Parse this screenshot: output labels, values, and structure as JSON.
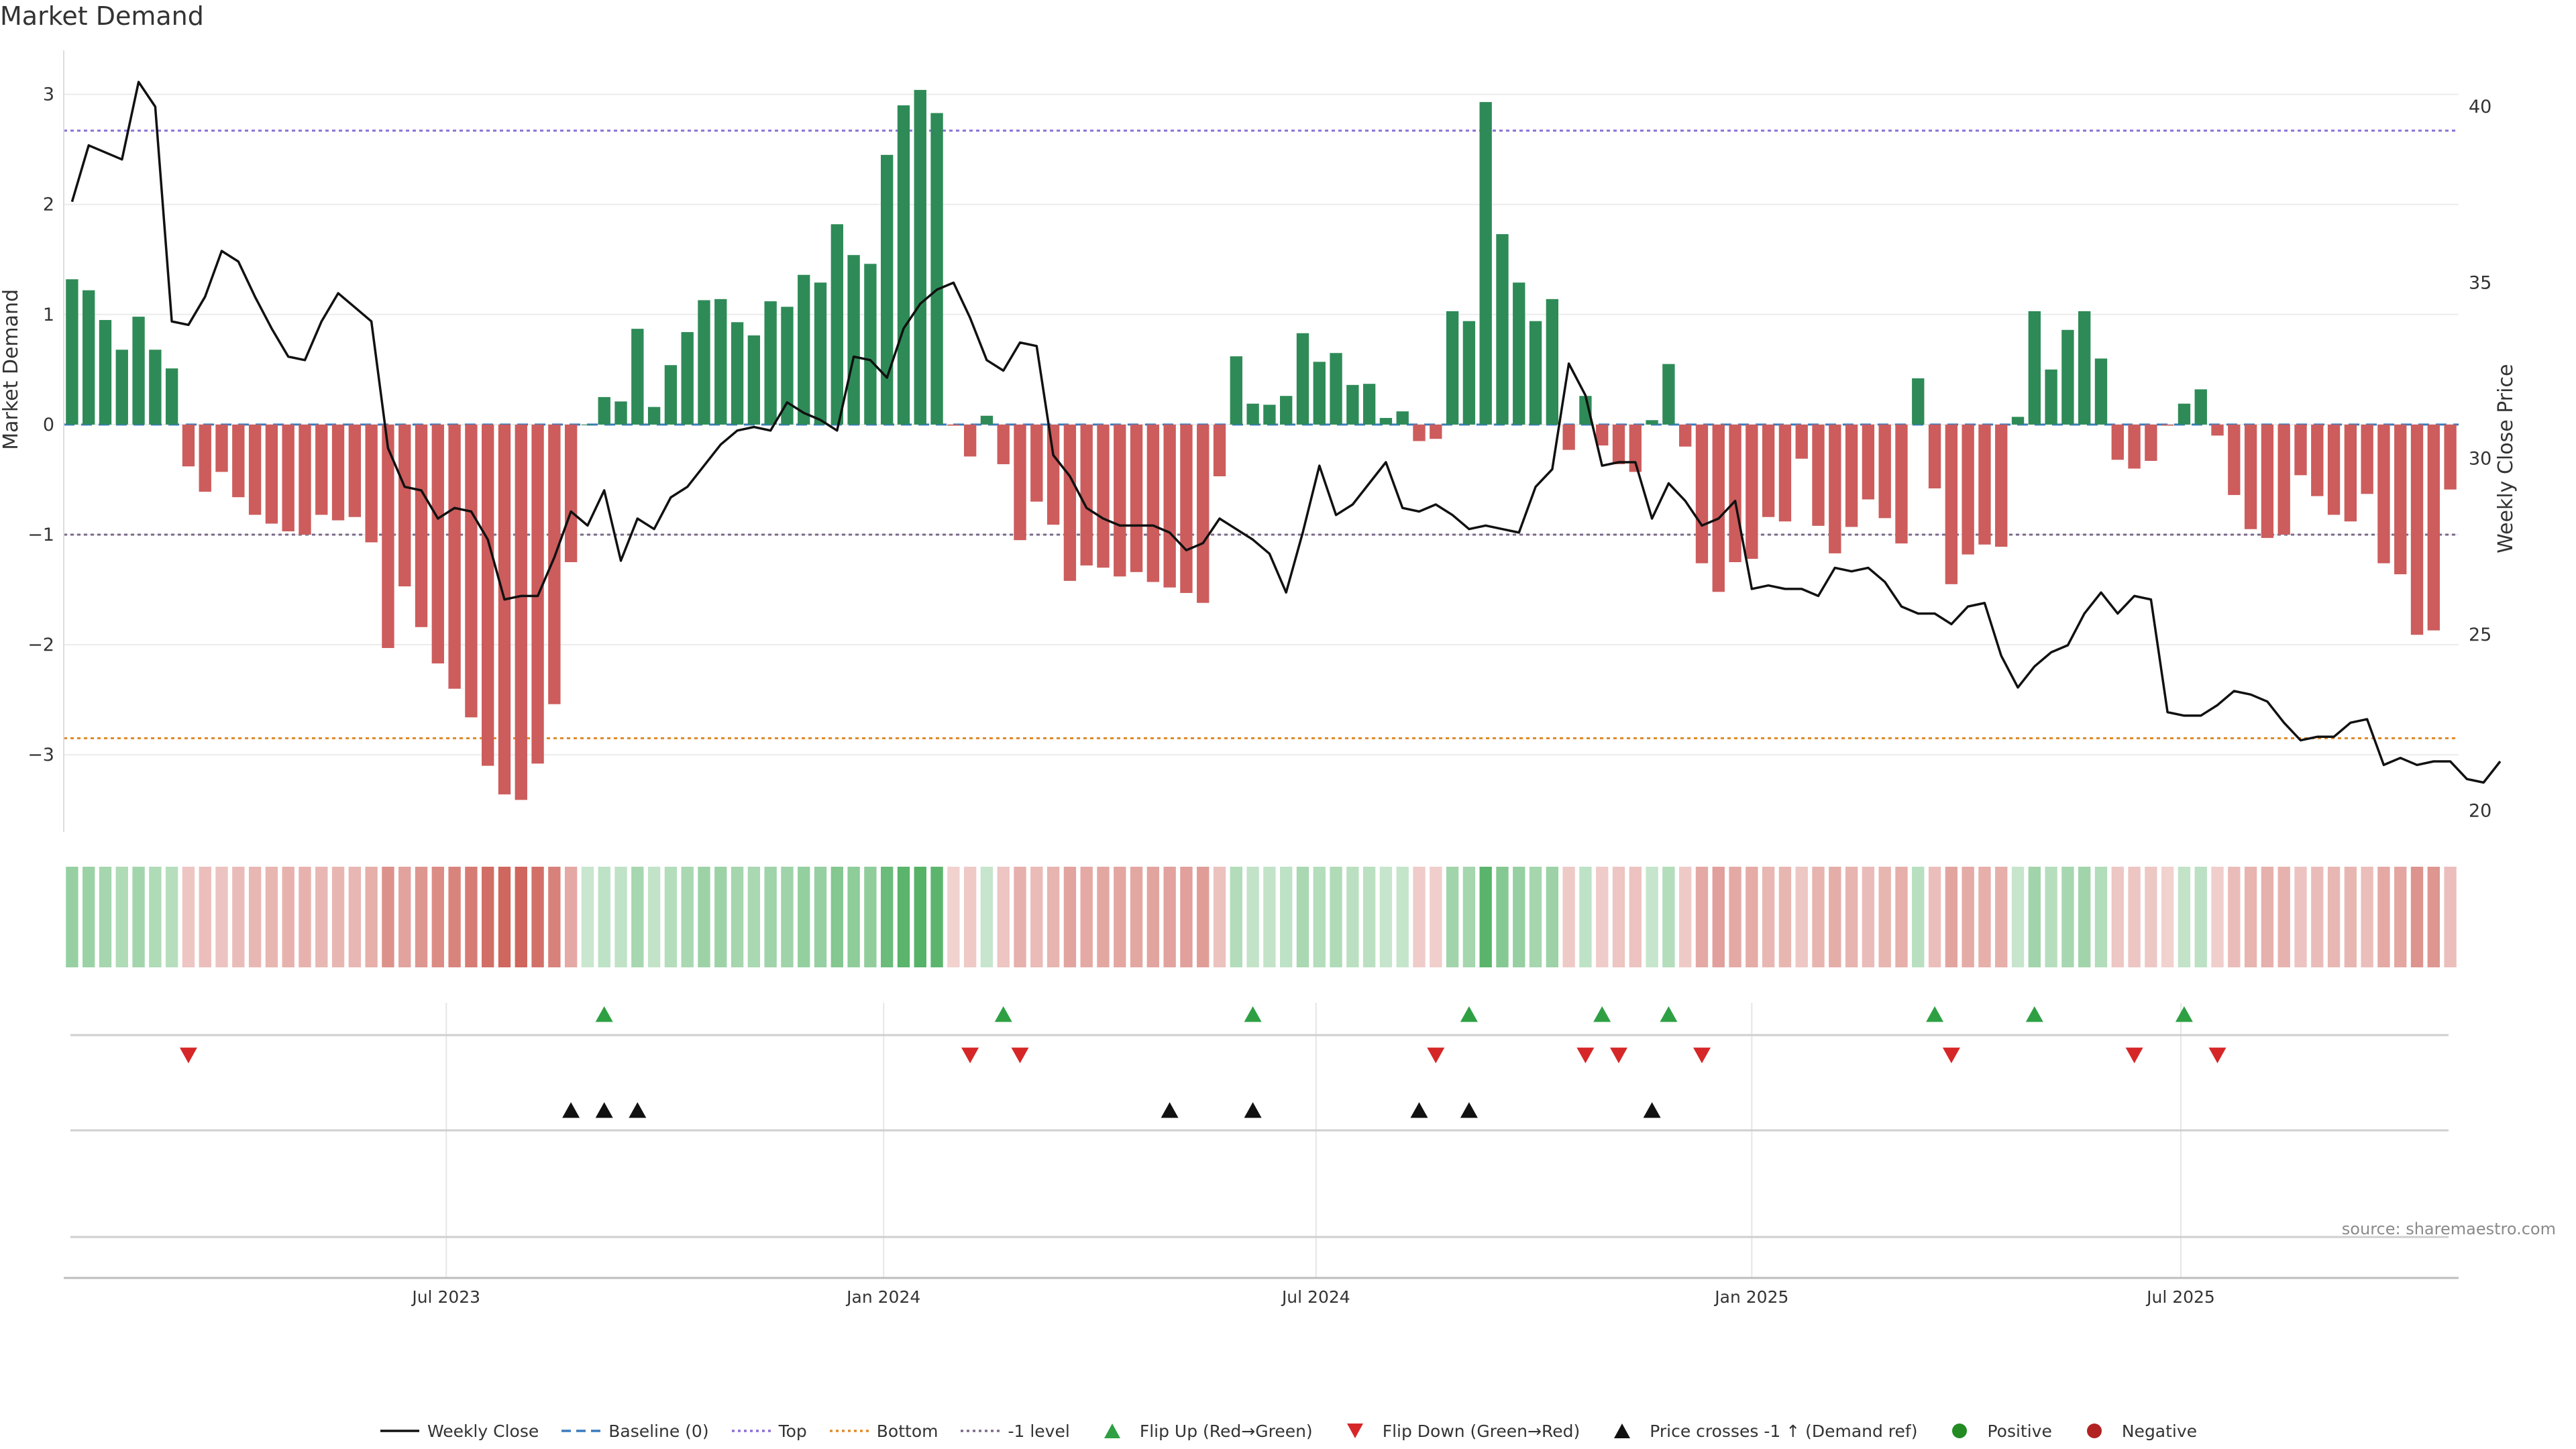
{
  "title": "Market Demand",
  "source_text": "source: sharemaestro.com",
  "colors": {
    "positive": "#2e8b57",
    "negative": "#cd5c5c",
    "close_line": "#111111",
    "top_line": "#8a6fd8",
    "bottom_line": "#e08a2a",
    "minus1_line": "#7a6a8a",
    "baseline": "#3a7bbf",
    "flip_up": "#2ea043",
    "flip_down": "#d62728",
    "crosses": "#111111"
  },
  "legend": [
    {
      "label": "Weekly Close",
      "symbol": "line-solid",
      "color": "#111111"
    },
    {
      "label": "Baseline (0)",
      "symbol": "line-dash",
      "color": "#3a7bbf"
    },
    {
      "label": "Top",
      "symbol": "line-dot",
      "color": "#8a6fd8"
    },
    {
      "label": "Bottom",
      "symbol": "line-dot",
      "color": "#e08a2a"
    },
    {
      "label": "-1 level",
      "symbol": "line-dot",
      "color": "#7a6a8a"
    },
    {
      "label": "Flip Up (Red→Green)",
      "symbol": "tri-up",
      "color": "#2ea043"
    },
    {
      "label": "Flip Down (Green→Red)",
      "symbol": "tri-down",
      "color": "#d62728"
    },
    {
      "label": "Price crosses -1 ↑ (Demand ref)",
      "symbol": "tri-up",
      "color": "#111111"
    },
    {
      "label": "Positive",
      "symbol": "dot",
      "color": "#228b22"
    },
    {
      "label": "Negative",
      "symbol": "dot",
      "color": "#b22222"
    }
  ],
  "chart_data": {
    "type": "bar",
    "title": "Market Demand",
    "ylabel": "Market Demand",
    "y2label": "Weekly Close Price",
    "ylim": [
      -3.7,
      3.4
    ],
    "y2lim": [
      19.4,
      41.6
    ],
    "yticks": [
      3,
      2,
      1,
      0,
      -1,
      -2,
      -3
    ],
    "ytick_labels": [
      "3",
      "2",
      "1",
      "0",
      "−1",
      "−2",
      "−3"
    ],
    "y2ticks": [
      40,
      35,
      30,
      25,
      20
    ],
    "x_tick_labels": [
      "Jul 2023",
      "Jan 2024",
      "Jul 2024",
      "Jan 2025",
      "Jul 2025"
    ],
    "x_tick_index": [
      22.5,
      48.8,
      74.8,
      101.0,
      126.8
    ],
    "reference_levels": {
      "baseline": 0,
      "top": 2.67,
      "bottom": -2.85,
      "minus_one": -1
    },
    "demand": [
      1.32,
      1.22,
      0.95,
      0.68,
      0.98,
      0.68,
      0.51,
      -0.38,
      -0.61,
      -0.43,
      -0.66,
      -0.82,
      -0.9,
      -0.97,
      -1,
      -0.82,
      -0.87,
      -0.84,
      -1.07,
      -2.03,
      -1.47,
      -1.84,
      -2.17,
      -2.4,
      -2.66,
      -3.1,
      -3.36,
      -3.41,
      -3.08,
      -2.54,
      -1.25,
      0,
      0.25,
      0.21,
      0.87,
      0.16,
      0.54,
      0.84,
      1.13,
      1.14,
      0.93,
      0.81,
      1.12,
      1.07,
      1.36,
      1.29,
      1.82,
      1.54,
      1.46,
      2.45,
      2.9,
      3.04,
      2.83,
      -0.01,
      -0.29,
      0.08,
      -0.36,
      -1.05,
      -0.7,
      -0.91,
      -1.42,
      -1.28,
      -1.3,
      -1.38,
      -1.34,
      -1.43,
      -1.48,
      -1.53,
      -1.62,
      -0.47,
      0.62,
      0.19,
      0.18,
      0.26,
      0.83,
      0.57,
      0.65,
      0.36,
      0.37,
      0.06,
      0.12,
      -0.15,
      -0.13,
      1.03,
      0.94,
      2.93,
      1.73,
      1.29,
      0.94,
      1.14,
      -0.23,
      0.26,
      -0.19,
      -0.36,
      -0.43,
      0.04,
      0.55,
      -0.2,
      -1.26,
      -1.52,
      -1.25,
      -1.22,
      -0.84,
      -0.88,
      -0.31,
      -0.92,
      -1.17,
      -0.93,
      -0.68,
      -0.85,
      -1.08,
      0.42,
      -0.58,
      -1.45,
      -1.18,
      -1.09,
      -1.11,
      0.07,
      1.03,
      0.5,
      0.86,
      1.03,
      0.6,
      -0.32,
      -0.4,
      -0.33,
      -0.01,
      0.19,
      0.32,
      -0.1,
      -0.64,
      -0.95,
      -1.03,
      -1,
      -0.46,
      -0.65,
      -0.82,
      -0.88,
      -0.63,
      -1.26,
      -1.36,
      -1.91,
      -1.87,
      -0.59
    ],
    "close": [
      37.3,
      38.9,
      38.7,
      38.5,
      40.7,
      40.0,
      33.9,
      33.8,
      34.6,
      35.9,
      35.6,
      34.6,
      33.7,
      32.9,
      32.8,
      33.9,
      34.7,
      34.3,
      33.9,
      30.3,
      29.2,
      29.1,
      28.3,
      28.6,
      28.5,
      27.7,
      26.0,
      26.1,
      26.1,
      27.2,
      28.5,
      28.1,
      29.1,
      27.1,
      28.3,
      28.0,
      28.9,
      29.2,
      29.8,
      30.4,
      30.8,
      30.9,
      30.8,
      31.6,
      31.3,
      31.1,
      30.8,
      32.9,
      32.8,
      32.3,
      33.7,
      34.4,
      34.8,
      35.0,
      34.0,
      32.8,
      32.5,
      33.3,
      33.2,
      30.1,
      29.5,
      28.6,
      28.3,
      28.1,
      28.1,
      28.1,
      27.9,
      27.4,
      27.6,
      28.3,
      28.0,
      27.7,
      27.3,
      26.2,
      27.9,
      29.8,
      28.4,
      28.7,
      29.3,
      29.9,
      28.6,
      28.5,
      28.7,
      28.4,
      28.0,
      28.1,
      28.0,
      27.9,
      29.2,
      29.7,
      32.7,
      31.8,
      29.8,
      29.9,
      29.9,
      28.3,
      29.3,
      28.8,
      28.1,
      28.3,
      28.8,
      26.3,
      26.4,
      26.3,
      26.3,
      26.1,
      26.9,
      26.8,
      26.9,
      26.5,
      25.8,
      25.6,
      25.6,
      25.3,
      25.8,
      25.9,
      24.4,
      23.5,
      24.1,
      24.5,
      24.7,
      25.6,
      26.2,
      25.6,
      26.1,
      26.0,
      22.8,
      22.7,
      22.7,
      23.0,
      23.4,
      23.3,
      23.1,
      22.5,
      22.0,
      22.1,
      22.1,
      22.5,
      22.6,
      21.3,
      21.5,
      21.3,
      21.4,
      21.4,
      20.9,
      20.8,
      21.4
    ],
    "flip_up_index": [
      32,
      56,
      71,
      84,
      92,
      96,
      112,
      118,
      127
    ],
    "flip_down_index": [
      7,
      54,
      57,
      82,
      91,
      93,
      98,
      113,
      124,
      129
    ],
    "price_cross_index": [
      30,
      32,
      34,
      66,
      71,
      81,
      84,
      95
    ]
  }
}
